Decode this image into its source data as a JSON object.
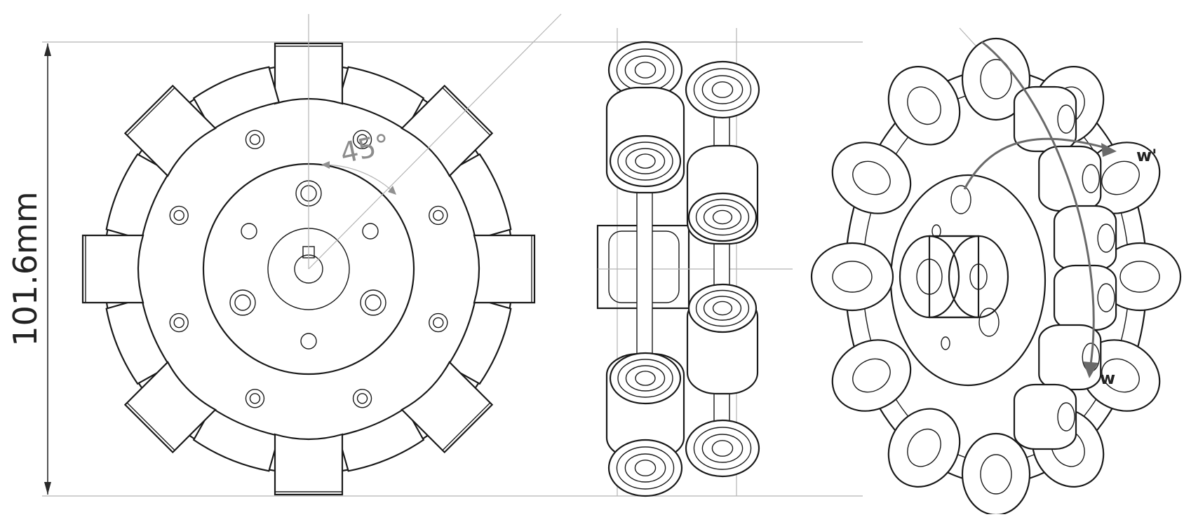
{
  "dimension": {
    "label": "101.6mm"
  },
  "angle": {
    "label": "45°"
  },
  "arrows": {
    "w_label": "w",
    "w_prime_label": "w'"
  },
  "colors": {
    "line": "#1a1a1a",
    "centerline": "#b5b5b5",
    "arrow": "#6a6a6a"
  }
}
